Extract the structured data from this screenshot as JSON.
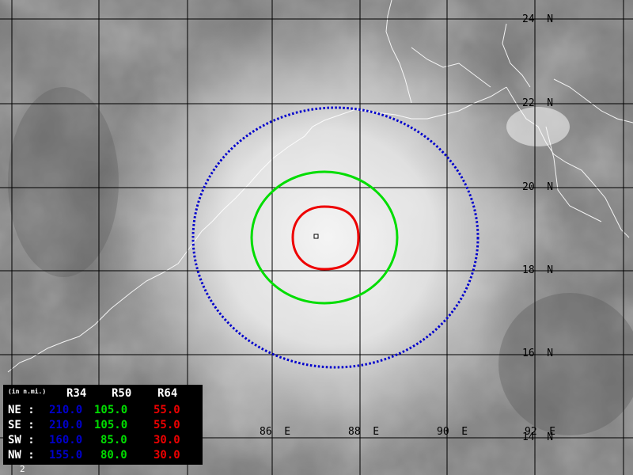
{
  "latitude_labels": [
    "24  N",
    "22  N",
    "20  N",
    "18  N",
    "16  N",
    "14  N"
  ],
  "longitude_labels": [
    "86  E",
    "88  E",
    "90  E",
    "92  E"
  ],
  "wind_radii_table": {
    "units": "(in n.mi.)",
    "columns": [
      "R34",
      "R50",
      "R64"
    ],
    "colors": {
      "R34": "#0000cc",
      "R50": "#00dd00",
      "R64": "#ee0000"
    },
    "rows": [
      {
        "quadrant": "NE :",
        "R34": "210.0",
        "R50": "105.0",
        "R64": "55.0"
      },
      {
        "quadrant": "SE :",
        "R34": "210.0",
        "R50": "105.0",
        "R64": "55.0"
      },
      {
        "quadrant": "SW :",
        "R34": "160.0",
        "R50": "85.0",
        "R64": "30.0"
      },
      {
        "quadrant": "NW :",
        "R34": "155.0",
        "R50": "80.0",
        "R64": "30.0"
      }
    ]
  },
  "frame_id": "2"
}
